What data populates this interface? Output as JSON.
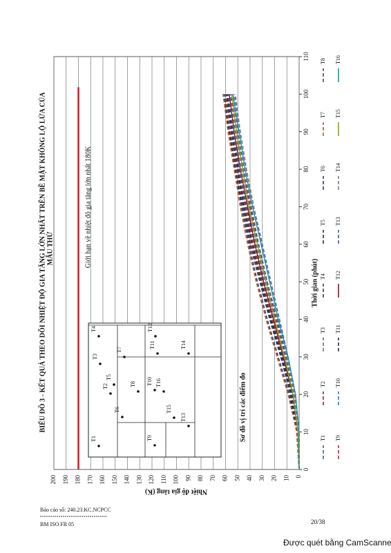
{
  "chart_data": {
    "type": "line",
    "title": "BIỂU ĐỒ 3 - KẾT QUẢ THEO DÕI NHIỆT ĐỘ GIA TĂNG LỚN NHẤT TRÊN BỀ MẶT KHÔNG LỘ LỬA CỦA",
    "subtitle": "MẪU THỬ",
    "x_label": "Thời gian (phút)",
    "y_label": "Nhiệt độ gia tăng (K)",
    "x": [
      0,
      10,
      20,
      30,
      40,
      50,
      60,
      70,
      80,
      90,
      100
    ],
    "xlim": [
      0,
      110
    ],
    "xticks": [
      0,
      10,
      20,
      30,
      40,
      50,
      60,
      70,
      80,
      90,
      100,
      110
    ],
    "ylim": [
      0,
      200
    ],
    "yticks": [
      0,
      10,
      20,
      30,
      40,
      50,
      60,
      70,
      80,
      90,
      100,
      110,
      120,
      130,
      140,
      150,
      160,
      170,
      180,
      190,
      200
    ],
    "grid": true,
    "limit": {
      "value": 180,
      "label": "Giới hạn về nhiệt độ gia tăng lớn nhất 180K",
      "color": "#c0202a"
    },
    "series": [
      {
        "name": "T1",
        "color": "#3a5fb0",
        "dashed": true,
        "values": [
          0,
          0,
          3,
          10,
          18,
          26,
          33,
          40,
          46,
          51,
          55
        ]
      },
      {
        "name": "T2",
        "color": "#8b2a2a",
        "dashed": true,
        "values": [
          0,
          1,
          6,
          14,
          23,
          31,
          39,
          45,
          51,
          56,
          60
        ]
      },
      {
        "name": "T3",
        "color": "#6d6d6d",
        "dashed": true,
        "values": [
          0,
          1,
          5,
          12,
          20,
          28,
          35,
          41,
          47,
          52,
          57
        ]
      },
      {
        "name": "T4",
        "color": "#2e3d6e",
        "dashed": true,
        "values": [
          0,
          2,
          8,
          17,
          26,
          34,
          41,
          47,
          52,
          57,
          61
        ]
      },
      {
        "name": "T5",
        "color": "#1f2f55",
        "dashed": true,
        "values": [
          0,
          2,
          7,
          15,
          24,
          32,
          40,
          46,
          52,
          57,
          62
        ]
      },
      {
        "name": "T6",
        "color": "#24396e",
        "dashed": true,
        "values": [
          0,
          1,
          5,
          13,
          21,
          29,
          36,
          43,
          49,
          54,
          58
        ]
      },
      {
        "name": "T7",
        "color": "#b5562a",
        "dashed": true,
        "values": [
          0,
          2,
          9,
          18,
          27,
          35,
          42,
          48,
          53,
          58,
          62
        ]
      },
      {
        "name": "T8",
        "color": "#9c2b2b",
        "dashed": true,
        "values": [
          0,
          1,
          6,
          14,
          22,
          30,
          37,
          44,
          50,
          55,
          59
        ]
      },
      {
        "name": "T9",
        "color": "#a0362e",
        "dashed": true,
        "values": [
          0,
          1,
          4,
          11,
          19,
          27,
          34,
          40,
          46,
          51,
          56
        ]
      },
      {
        "name": "T10",
        "color": "#3b6fc0",
        "dashed": true,
        "values": [
          0,
          0,
          3,
          9,
          16,
          23,
          30,
          37,
          43,
          48,
          53
        ]
      },
      {
        "name": "T11",
        "color": "#2b2b3b",
        "dashed": true,
        "values": [
          0,
          1,
          6,
          14,
          23,
          31,
          38,
          45,
          50,
          55,
          59
        ]
      },
      {
        "name": "T12",
        "color": "#6e1f2a",
        "dashed": false,
        "values": [
          0,
          1,
          5,
          13,
          21,
          29,
          36,
          42,
          48,
          53,
          57
        ]
      },
      {
        "name": "T13",
        "color": "#4b5b7a",
        "dashed": true,
        "values": [
          0,
          1,
          4,
          11,
          18,
          26,
          33,
          39,
          45,
          50,
          54
        ]
      },
      {
        "name": "T14",
        "color": "#7a7a7a",
        "dashed": true,
        "values": [
          0,
          1,
          4,
          10,
          17,
          24,
          31,
          37,
          43,
          48,
          52
        ]
      },
      {
        "name": "T15",
        "color": "#8a9a3a",
        "dashed": false,
        "values": [
          0,
          1,
          5,
          12,
          20,
          27,
          34,
          41,
          46,
          51,
          55
        ]
      },
      {
        "name": "T16",
        "color": "#2a8a9a",
        "dashed": false,
        "values": [
          0,
          0,
          3,
          9,
          17,
          24,
          31,
          38,
          44,
          49,
          54
        ]
      }
    ]
  },
  "diagram": {
    "title": "Sơ đồ vị trí các điểm đo",
    "points": [
      "T1",
      "T2",
      "T3",
      "T4",
      "T5",
      "T6",
      "T7",
      "T8",
      "T9",
      "T10",
      "T11",
      "T12",
      "T13",
      "T14",
      "T15",
      "T16"
    ]
  },
  "footer": {
    "report": "Báo cáo số: 240.23.KC.NCPCC",
    "form": "BM ISO FR 05",
    "page": "20/38",
    "scanner": "Được quét bằng CamScanner"
  }
}
